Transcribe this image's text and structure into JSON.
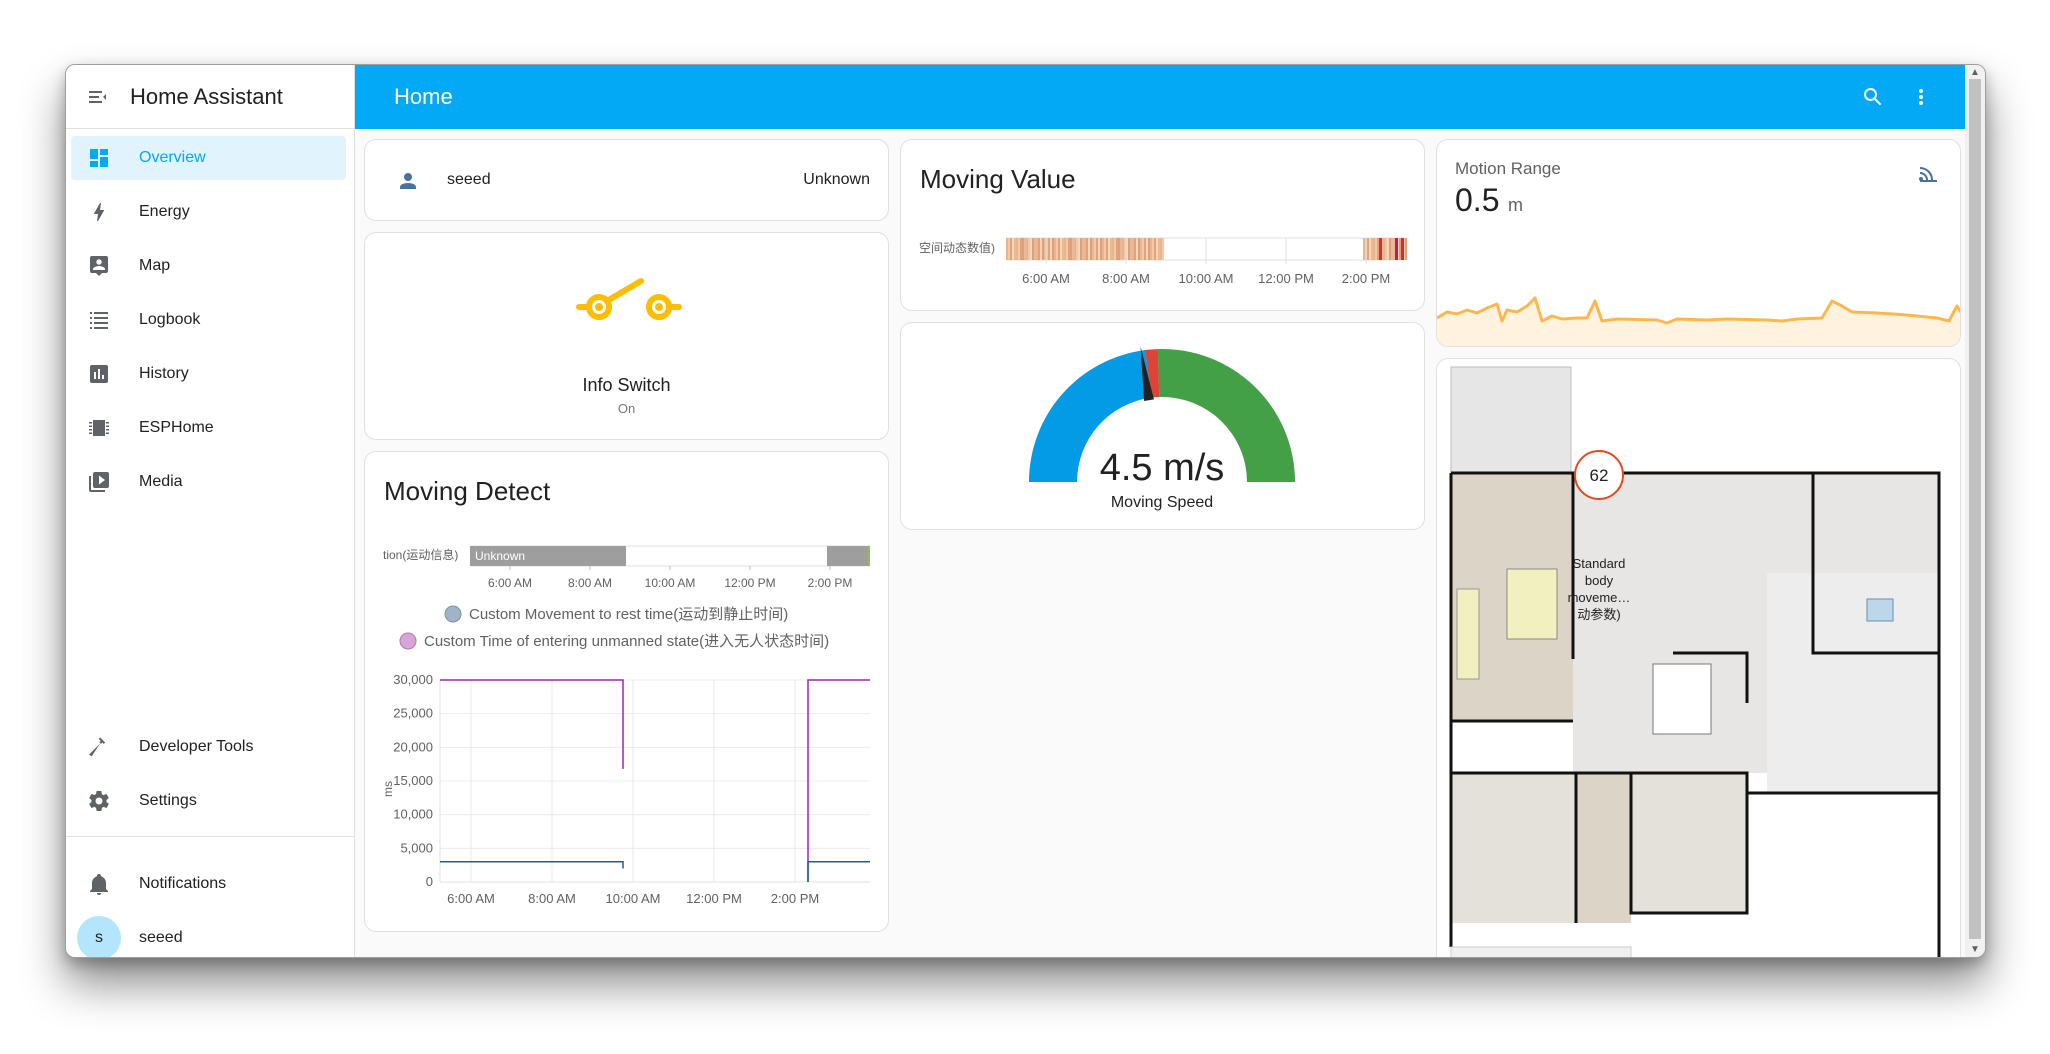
{
  "sidebar": {
    "title": "Home Assistant",
    "items": [
      {
        "label": "Overview",
        "icon": "overview-icon"
      },
      {
        "label": "Energy",
        "icon": "lightning-icon"
      },
      {
        "label": "Map",
        "icon": "map-icon"
      },
      {
        "label": "Logbook",
        "icon": "logbook-icon"
      },
      {
        "label": "History",
        "icon": "history-icon"
      },
      {
        "label": "ESPHome",
        "icon": "chip-icon"
      },
      {
        "label": "Media",
        "icon": "media-icon"
      }
    ],
    "bottom": [
      {
        "label": "Developer Tools",
        "icon": "hammer-icon"
      },
      {
        "label": "Settings",
        "icon": "gear-icon"
      }
    ],
    "notifications_label": "Notifications",
    "user": {
      "initial": "s",
      "name": "seeed"
    }
  },
  "topbar": {
    "title": "Home"
  },
  "colors": {
    "accent": "#03a9f4",
    "switch_on": "#fdbd00",
    "gauge_blue": "#039be5",
    "gauge_green": "#43a047",
    "gauge_red": "#db4437",
    "line_orange": "#ffb74d"
  },
  "person": {
    "name": "seeed",
    "state": "Unknown"
  },
  "info_switch": {
    "name": "Info Switch",
    "state": "On"
  },
  "moving_detect": {
    "title": "Moving Detect",
    "timeline_label": "tion(运动信息)",
    "timeline_state": "Unknown",
    "x_ticks": [
      "6:00 AM",
      "8:00 AM",
      "10:00 AM",
      "12:00 PM",
      "2:00 PM"
    ],
    "legend": [
      {
        "name": "Custom Movement to rest time(运动到静止时间)",
        "color": "#a0b4c8"
      },
      {
        "name": "Custom Time of entering unmanned state(进入无人状态时间)",
        "color": "#d7a6d6"
      }
    ],
    "ylabel": "ms",
    "y_ticks": [
      "30,000",
      "25,000",
      "20,000",
      "15,000",
      "10,000",
      "5,000",
      "0"
    ]
  },
  "moving_value": {
    "title": "Moving Value",
    "timeline_label": "空间动态数值)",
    "x_ticks": [
      "6:00 AM",
      "8:00 AM",
      "10:00 AM",
      "12:00 PM",
      "2:00 PM"
    ]
  },
  "gauge": {
    "value": "4.5 m/s",
    "name": "Moving Speed",
    "level": 0.45
  },
  "motion_range": {
    "name": "Motion Range",
    "value": "0.5",
    "unit": "m",
    "icon": "motion-sensor-icon"
  },
  "floorplan": {
    "badge_value": "62",
    "badge_label": "Standard body moveme… 动参数)"
  },
  "chart_data": [
    {
      "type": "line",
      "x": [
        "6:00 AM",
        "8:00 AM",
        "10:00 AM",
        "12:00 PM",
        "2:00 PM"
      ],
      "ylabel": "ms",
      "ylim": [
        0,
        30000
      ],
      "series": [
        {
          "name": "Custom Movement to rest time(运动到静止时间)",
          "values": [
            3000,
            3000,
            3000,
            null,
            3000
          ]
        },
        {
          "name": "Custom Time of entering unmanned state(进入无人状态时间)",
          "values": [
            30000,
            30000,
            30000,
            null,
            30000
          ]
        }
      ]
    }
  ]
}
